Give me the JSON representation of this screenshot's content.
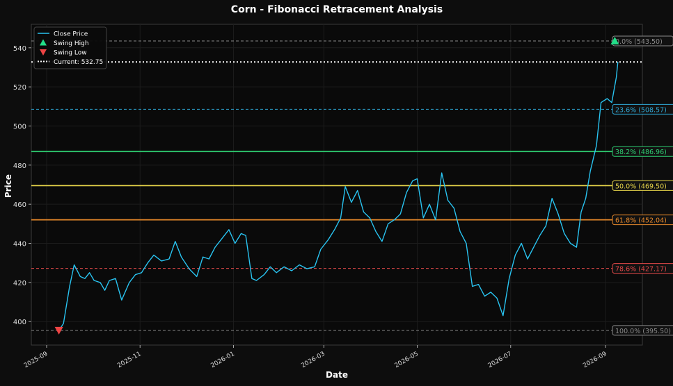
{
  "chart_data": {
    "type": "line",
    "title": "Corn - Fibonacci Retracement Analysis",
    "xlabel": "Date",
    "ylabel": "Price",
    "ylim": [
      388,
      552
    ],
    "xlim": [
      "2025-08-22",
      "2026-09-25"
    ],
    "grid": true,
    "legend_position": "top-left",
    "x_ticks": [
      "2025-09",
      "2025-11",
      "2026-01",
      "2026-03",
      "2026-05",
      "2026-07",
      "2026-09"
    ],
    "x_tick_dates": [
      "2025-09-01",
      "2025-11-01",
      "2026-01-01",
      "2026-03-01",
      "2026-05-01",
      "2026-07-01",
      "2026-09-01"
    ],
    "y_ticks": [
      400,
      420,
      440,
      460,
      480,
      500,
      520,
      540
    ],
    "legend": [
      {
        "label": "Close Price",
        "kind": "line",
        "color": "#29c3f0"
      },
      {
        "label": "Swing High",
        "kind": "marker-up",
        "color": "#22dd88"
      },
      {
        "label": "Swing Low",
        "kind": "marker-down",
        "color": "#ee4444"
      },
      {
        "label": "Current: 532.75",
        "kind": "dotted",
        "color": "#ffffff"
      }
    ],
    "current_price": 532.75,
    "swing_high": {
      "date": "2026-09-07",
      "value": 543.5
    },
    "swing_low": {
      "date": "2025-09-09",
      "value": 395.5
    },
    "fib_levels": [
      {
        "label": "0.0% (543.50)",
        "value": 543.5,
        "color": "#8a8a8a",
        "style": "dashed"
      },
      {
        "label": "23.6% (508.57)",
        "value": 508.57,
        "color": "#2fa9d6",
        "style": "dashed"
      },
      {
        "label": "38.2% (486.96)",
        "value": 486.96,
        "color": "#2ecc71",
        "style": "solid"
      },
      {
        "label": "50.0% (469.50)",
        "value": 469.5,
        "color": "#e8d64a",
        "style": "solid"
      },
      {
        "label": "61.8% (452.04)",
        "value": 452.04,
        "color": "#e8892b",
        "style": "solid"
      },
      {
        "label": "78.6% (427.17)",
        "value": 427.17,
        "color": "#e04848",
        "style": "dashed"
      },
      {
        "label": "100.0% (395.50)",
        "value": 395.5,
        "color": "#8a8a8a",
        "style": "dashed"
      }
    ],
    "series": [
      {
        "name": "Close Price",
        "color": "#29c3f0",
        "points": [
          [
            "2025-09-09",
            395.5
          ],
          [
            "2025-09-12",
            399
          ],
          [
            "2025-09-16",
            418
          ],
          [
            "2025-09-19",
            429
          ],
          [
            "2025-09-23",
            423
          ],
          [
            "2025-09-26",
            422
          ],
          [
            "2025-09-29",
            425
          ],
          [
            "2025-10-02",
            421
          ],
          [
            "2025-10-06",
            420
          ],
          [
            "2025-10-09",
            416
          ],
          [
            "2025-10-12",
            421
          ],
          [
            "2025-10-16",
            422
          ],
          [
            "2025-10-20",
            411
          ],
          [
            "2025-10-25",
            420
          ],
          [
            "2025-10-29",
            424
          ],
          [
            "2025-11-02",
            425
          ],
          [
            "2025-11-06",
            430
          ],
          [
            "2025-11-10",
            434
          ],
          [
            "2025-11-15",
            431
          ],
          [
            "2025-11-20",
            432
          ],
          [
            "2025-11-24",
            441
          ],
          [
            "2025-11-28",
            433
          ],
          [
            "2025-12-03",
            427
          ],
          [
            "2025-12-08",
            423
          ],
          [
            "2025-12-12",
            433
          ],
          [
            "2025-12-16",
            432
          ],
          [
            "2025-12-20",
            438
          ],
          [
            "2025-12-25",
            443
          ],
          [
            "2025-12-29",
            447
          ],
          [
            "2026-01-02",
            440
          ],
          [
            "2026-01-06",
            445
          ],
          [
            "2026-01-09",
            444
          ],
          [
            "2026-01-13",
            422
          ],
          [
            "2026-01-16",
            421
          ],
          [
            "2026-01-21",
            424
          ],
          [
            "2026-01-25",
            428
          ],
          [
            "2026-01-29",
            425
          ],
          [
            "2026-02-03",
            428
          ],
          [
            "2026-02-08",
            426
          ],
          [
            "2026-02-13",
            429
          ],
          [
            "2026-02-18",
            427
          ],
          [
            "2026-02-23",
            428
          ],
          [
            "2026-02-27",
            437
          ],
          [
            "2026-03-04",
            442
          ],
          [
            "2026-03-08",
            447
          ],
          [
            "2026-03-12",
            453
          ],
          [
            "2026-03-15",
            469
          ],
          [
            "2026-03-19",
            461
          ],
          [
            "2026-03-23",
            467
          ],
          [
            "2026-03-27",
            456
          ],
          [
            "2026-03-31",
            453
          ],
          [
            "2026-04-04",
            446
          ],
          [
            "2026-04-08",
            441
          ],
          [
            "2026-04-12",
            450
          ],
          [
            "2026-04-16",
            452
          ],
          [
            "2026-04-20",
            455
          ],
          [
            "2026-04-24",
            466
          ],
          [
            "2026-04-28",
            472
          ],
          [
            "2026-05-01",
            473
          ],
          [
            "2026-05-05",
            453
          ],
          [
            "2026-05-09",
            460
          ],
          [
            "2026-05-13",
            452
          ],
          [
            "2026-05-17",
            476
          ],
          [
            "2026-05-21",
            462
          ],
          [
            "2026-05-25",
            458
          ],
          [
            "2026-05-29",
            446
          ],
          [
            "2026-06-02",
            440
          ],
          [
            "2026-06-06",
            418
          ],
          [
            "2026-06-10",
            419
          ],
          [
            "2026-06-14",
            413
          ],
          [
            "2026-06-18",
            415
          ],
          [
            "2026-06-22",
            412
          ],
          [
            "2026-06-26",
            403
          ],
          [
            "2026-06-30",
            422
          ],
          [
            "2026-07-04",
            434
          ],
          [
            "2026-07-08",
            440
          ],
          [
            "2026-07-12",
            432
          ],
          [
            "2026-07-16",
            438
          ],
          [
            "2026-07-20",
            444
          ],
          [
            "2026-07-24",
            449
          ],
          [
            "2026-07-28",
            463
          ],
          [
            "2026-08-01",
            455
          ],
          [
            "2026-08-05",
            445
          ],
          [
            "2026-08-09",
            440
          ],
          [
            "2026-08-13",
            438
          ],
          [
            "2026-08-16",
            456
          ],
          [
            "2026-08-19",
            463
          ],
          [
            "2026-08-22",
            477
          ],
          [
            "2026-08-26",
            490
          ],
          [
            "2026-08-29",
            512
          ],
          [
            "2026-09-02",
            514
          ],
          [
            "2026-09-05",
            512
          ],
          [
            "2026-09-08",
            525
          ],
          [
            "2026-09-09",
            532.75
          ]
        ]
      }
    ]
  }
}
